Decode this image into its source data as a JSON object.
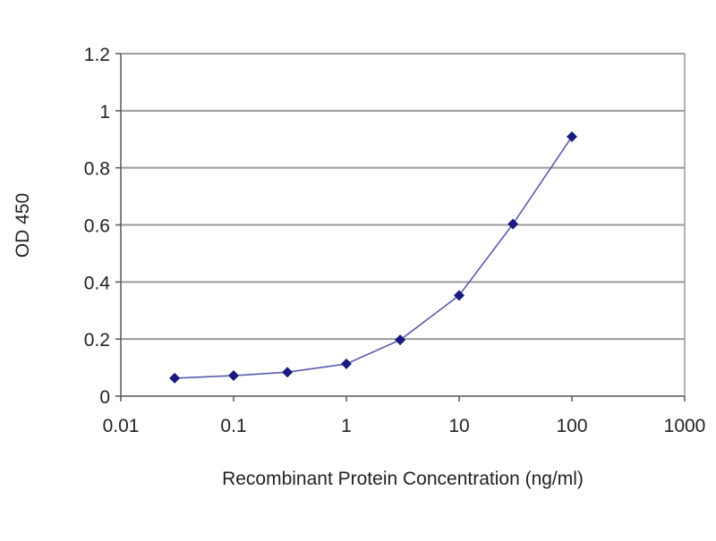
{
  "chart_data": {
    "type": "line",
    "title": "",
    "xlabel": "Recombinant Protein Concentration (ng/ml)",
    "ylabel": "OD 450",
    "xscale": "log",
    "xlim": [
      0.01,
      1000
    ],
    "ylim": [
      0,
      1.2
    ],
    "xticks": [
      "0.01",
      "0.1",
      "1",
      "10",
      "100",
      "1000"
    ],
    "yticks": [
      "0",
      "0.2",
      "0.4",
      "0.6",
      "0.8",
      "1",
      "1.2"
    ],
    "grid": "horizontal",
    "series": [
      {
        "x": [
          0.03,
          0.1,
          0.3,
          1,
          3,
          10,
          30,
          100
        ],
        "y": [
          0.063,
          0.072,
          0.084,
          0.113,
          0.197,
          0.353,
          0.603,
          0.909
        ],
        "color": "#1a1a80",
        "marker": "diamond"
      }
    ]
  }
}
